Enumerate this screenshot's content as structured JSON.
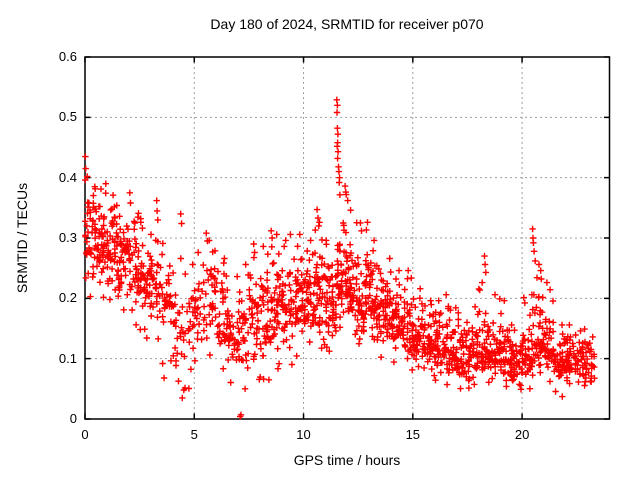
{
  "chart_data": {
    "type": "scatter",
    "title": "Day 180 of 2024, SRMTID for receiver p070",
    "xlabel": "GPS time / hours",
    "ylabel": "SRMTID / TECUs",
    "xlim": [
      0,
      24
    ],
    "ylim": [
      0,
      0.6
    ],
    "x_end": 23.35,
    "grid": true,
    "legend": null,
    "point_count_estimate": 1850,
    "xticks": [
      {
        "v": 0,
        "label": "0"
      },
      {
        "v": 5,
        "label": "5"
      },
      {
        "v": 10,
        "label": "10"
      },
      {
        "v": 15,
        "label": "15"
      },
      {
        "v": 20,
        "label": "20"
      }
    ],
    "yticks": [
      {
        "v": 0,
        "label": "0"
      },
      {
        "v": 0.1,
        "label": "0.1"
      },
      {
        "v": 0.2,
        "label": "0.2"
      },
      {
        "v": 0.3,
        "label": "0.3"
      },
      {
        "v": 0.4,
        "label": "0.4"
      },
      {
        "v": 0.5,
        "label": "0.5"
      },
      {
        "v": 0.6,
        "label": "0.6"
      }
    ],
    "marker": {
      "shape": "plus",
      "color": "#ff0000",
      "half_size": 3.2,
      "stroke_width": 1.4
    },
    "colors": {
      "background": "#ffffff",
      "border": "#000000",
      "grid": "#9e9e9e",
      "text": "#000000"
    },
    "envelope": [
      [
        0.0,
        0.2,
        0.4,
        0.295,
        45
      ],
      [
        0.5,
        0.195,
        0.385,
        0.29,
        45
      ],
      [
        1.0,
        0.19,
        0.375,
        0.28,
        45
      ],
      [
        1.5,
        0.17,
        0.34,
        0.26,
        43
      ],
      [
        2.0,
        0.15,
        0.345,
        0.25,
        40
      ],
      [
        2.5,
        0.125,
        0.33,
        0.235,
        38
      ],
      [
        3.0,
        0.13,
        0.31,
        0.22,
        35
      ],
      [
        3.5,
        0.09,
        0.295,
        0.2,
        30
      ],
      [
        4.0,
        0.06,
        0.27,
        0.17,
        25
      ],
      [
        4.5,
        0.04,
        0.26,
        0.155,
        22
      ],
      [
        5.0,
        0.09,
        0.28,
        0.185,
        28
      ],
      [
        5.5,
        0.1,
        0.3,
        0.2,
        30
      ],
      [
        6.0,
        0.08,
        0.27,
        0.17,
        33
      ],
      [
        6.5,
        0.06,
        0.24,
        0.145,
        35
      ],
      [
        7.0,
        0.05,
        0.26,
        0.15,
        35
      ],
      [
        7.5,
        0.06,
        0.28,
        0.165,
        38
      ],
      [
        8.0,
        0.06,
        0.29,
        0.17,
        40
      ],
      [
        8.5,
        0.08,
        0.31,
        0.18,
        42
      ],
      [
        9.0,
        0.09,
        0.3,
        0.185,
        42
      ],
      [
        9.5,
        0.1,
        0.31,
        0.19,
        42
      ],
      [
        10.0,
        0.12,
        0.3,
        0.2,
        45
      ],
      [
        10.5,
        0.11,
        0.33,
        0.2,
        45
      ],
      [
        11.0,
        0.11,
        0.3,
        0.19,
        48
      ],
      [
        11.5,
        0.15,
        0.38,
        0.23,
        50
      ],
      [
        12.0,
        0.13,
        0.35,
        0.21,
        50
      ],
      [
        12.5,
        0.12,
        0.33,
        0.2,
        48
      ],
      [
        13.0,
        0.12,
        0.3,
        0.19,
        45
      ],
      [
        13.5,
        0.1,
        0.27,
        0.17,
        43
      ],
      [
        14.0,
        0.09,
        0.25,
        0.155,
        43
      ],
      [
        14.5,
        0.08,
        0.25,
        0.15,
        43
      ],
      [
        15.0,
        0.08,
        0.22,
        0.14,
        43
      ],
      [
        15.5,
        0.07,
        0.2,
        0.125,
        43
      ],
      [
        16.0,
        0.06,
        0.2,
        0.115,
        43
      ],
      [
        16.5,
        0.05,
        0.21,
        0.11,
        43
      ],
      [
        17.0,
        0.04,
        0.18,
        0.1,
        43
      ],
      [
        17.5,
        0.05,
        0.19,
        0.1,
        43
      ],
      [
        18.0,
        0.06,
        0.23,
        0.115,
        43
      ],
      [
        18.5,
        0.06,
        0.21,
        0.11,
        43
      ],
      [
        19.0,
        0.05,
        0.2,
        0.1,
        43
      ],
      [
        19.5,
        0.04,
        0.16,
        0.09,
        43
      ],
      [
        20.0,
        0.05,
        0.21,
        0.1,
        43
      ],
      [
        20.5,
        0.07,
        0.26,
        0.13,
        45
      ],
      [
        21.0,
        0.06,
        0.23,
        0.115,
        43
      ],
      [
        21.5,
        0.035,
        0.16,
        0.09,
        40
      ],
      [
        22.0,
        0.05,
        0.16,
        0.095,
        40
      ],
      [
        22.5,
        0.05,
        0.15,
        0.09,
        38
      ],
      [
        23.0,
        0.055,
        0.14,
        0.09,
        20
      ]
    ],
    "outlier_points": [
      [
        0.02,
        0.435
      ],
      [
        0.03,
        0.415
      ],
      [
        0.1,
        0.402
      ],
      [
        0.45,
        0.385
      ],
      [
        0.95,
        0.39
      ],
      [
        2.05,
        0.375
      ],
      [
        2.08,
        0.358
      ],
      [
        2.55,
        0.332
      ],
      [
        3.28,
        0.362
      ],
      [
        3.3,
        0.345
      ],
      [
        3.33,
        0.33
      ],
      [
        3.55,
        0.092
      ],
      [
        3.62,
        0.068
      ],
      [
        4.38,
        0.34
      ],
      [
        4.42,
        0.324
      ],
      [
        4.45,
        0.035
      ],
      [
        4.52,
        0.048
      ],
      [
        5.55,
        0.308
      ],
      [
        5.6,
        0.295
      ],
      [
        7.1,
        0.004
      ],
      [
        7.14,
        0.007
      ],
      [
        7.72,
        0.29
      ],
      [
        8.52,
        0.312
      ],
      [
        8.56,
        0.3
      ],
      [
        9.4,
        0.306
      ],
      [
        10.62,
        0.347
      ],
      [
        10.66,
        0.333
      ],
      [
        10.7,
        0.32
      ],
      [
        11.52,
        0.529
      ],
      [
        11.55,
        0.52
      ],
      [
        11.53,
        0.508
      ],
      [
        11.55,
        0.482
      ],
      [
        11.57,
        0.472
      ],
      [
        11.56,
        0.458
      ],
      [
        11.54,
        0.452
      ],
      [
        11.58,
        0.443
      ],
      [
        11.56,
        0.432
      ],
      [
        11.6,
        0.418
      ],
      [
        11.62,
        0.41
      ],
      [
        11.65,
        0.4
      ],
      [
        11.63,
        0.392
      ],
      [
        11.9,
        0.386
      ],
      [
        11.95,
        0.372
      ],
      [
        12.02,
        0.362
      ],
      [
        12.6,
        0.325
      ],
      [
        12.65,
        0.312
      ],
      [
        18.28,
        0.27
      ],
      [
        18.31,
        0.256
      ],
      [
        18.34,
        0.243
      ],
      [
        20.48,
        0.315
      ],
      [
        20.5,
        0.3
      ],
      [
        20.52,
        0.292
      ],
      [
        20.55,
        0.278
      ],
      [
        20.6,
        0.262
      ],
      [
        20.85,
        0.246
      ],
      [
        20.88,
        0.232
      ],
      [
        22.86,
        0.149
      ]
    ]
  }
}
